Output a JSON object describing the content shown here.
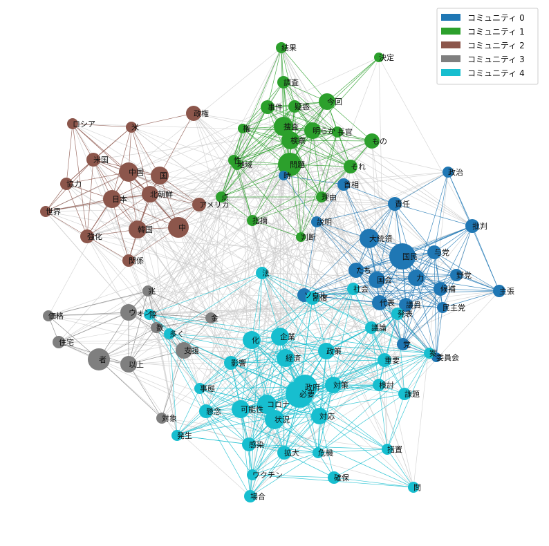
{
  "legend": [
    {
      "name": "コミュニティ 0",
      "color": "#1f77b4"
    },
    {
      "name": "コミュニティ 1",
      "color": "#2ca02c"
    },
    {
      "name": "コミュニティ 2",
      "color": "#8c564b"
    },
    {
      "name": "コミュニティ 3",
      "color": "#7f7f7f"
    },
    {
      "name": "コミュニティ 4",
      "color": "#17becf"
    }
  ],
  "background_edge_color": "#c8c8c8",
  "nodes": [
    {
      "id": "結果",
      "c": 1,
      "s": 8
    },
    {
      "id": "決定",
      "c": 1,
      "s": 7
    },
    {
      "id": "調査",
      "c": 1,
      "s": 9
    },
    {
      "id": "事件",
      "c": 1,
      "s": 10
    },
    {
      "id": "疑惑",
      "c": 1,
      "s": 9
    },
    {
      "id": "今回",
      "c": 1,
      "s": 12
    },
    {
      "id": "権",
      "c": 1,
      "s": 7
    },
    {
      "id": "捜査",
      "c": 1,
      "s": 14
    },
    {
      "id": "明らか",
      "c": 1,
      "s": 12
    },
    {
      "id": "長官",
      "c": 1,
      "s": 8
    },
    {
      "id": "検察",
      "c": 1,
      "s": 13
    },
    {
      "id": "もの",
      "c": 1,
      "s": 11
    },
    {
      "id": "性",
      "c": 1,
      "s": 8
    },
    {
      "id": "地域",
      "c": 1,
      "s": 8
    },
    {
      "id": "問題",
      "c": 1,
      "s": 17
    },
    {
      "id": "それ",
      "c": 1,
      "s": 10
    },
    {
      "id": "点",
      "c": 1,
      "s": 8
    },
    {
      "id": "理由",
      "c": 1,
      "s": 8
    },
    {
      "id": "指摘",
      "c": 1,
      "s": 8
    },
    {
      "id": "判断",
      "c": 1,
      "s": 7
    },
    {
      "id": "政権",
      "c": 2,
      "s": 11
    },
    {
      "id": "ロシア",
      "c": 2,
      "s": 8
    },
    {
      "id": "米",
      "c": 2,
      "s": 8
    },
    {
      "id": "米国",
      "c": 2,
      "s": 10
    },
    {
      "id": "中国",
      "c": 2,
      "s": 14
    },
    {
      "id": "国",
      "c": 2,
      "s": 13
    },
    {
      "id": "協力",
      "c": 2,
      "s": 9
    },
    {
      "id": "日本",
      "c": 2,
      "s": 13
    },
    {
      "id": "北朝鮮",
      "c": 2,
      "s": 12
    },
    {
      "id": "世界",
      "c": 2,
      "s": 8
    },
    {
      "id": "アメリカ",
      "c": 2,
      "s": 10
    },
    {
      "id": "強化",
      "c": 2,
      "s": 10
    },
    {
      "id": "韓国",
      "c": 2,
      "s": 13
    },
    {
      "id": "中",
      "c": 2,
      "s": 15
    },
    {
      "id": "関係",
      "c": 2,
      "s": 9
    },
    {
      "id": "政治",
      "c": 0,
      "s": 8
    },
    {
      "id": "時",
      "c": 0,
      "s": 7
    },
    {
      "id": "首相",
      "c": 0,
      "s": 9
    },
    {
      "id": "責任",
      "c": 0,
      "s": 10
    },
    {
      "id": "説明",
      "c": 0,
      "s": 8
    },
    {
      "id": "批判",
      "c": 0,
      "s": 10
    },
    {
      "id": "大統領",
      "c": 0,
      "s": 14
    },
    {
      "id": "国民",
      "c": 0,
      "s": 19
    },
    {
      "id": "与党",
      "c": 0,
      "s": 10
    },
    {
      "id": "たち",
      "c": 0,
      "s": 11
    },
    {
      "id": "力",
      "c": 0,
      "s": 12
    },
    {
      "id": "国会",
      "c": 0,
      "s": 12
    },
    {
      "id": "野党",
      "c": 0,
      "s": 9
    },
    {
      "id": "候補",
      "c": 0,
      "s": 10
    },
    {
      "id": "主張",
      "c": 0,
      "s": 9
    },
    {
      "id": "ソウル",
      "c": 0,
      "s": 10
    },
    {
      "id": "代表",
      "c": 0,
      "s": 11
    },
    {
      "id": "議員",
      "c": 0,
      "s": 10
    },
    {
      "id": "民主党",
      "c": 0,
      "s": 8
    },
    {
      "id": "党",
      "c": 0,
      "s": 9
    },
    {
      "id": "委員会",
      "c": 0,
      "s": 7
    },
    {
      "id": "兆",
      "c": 3,
      "s": 8
    },
    {
      "id": "価格",
      "c": 3,
      "s": 8
    },
    {
      "id": "ウォン",
      "c": 3,
      "s": 12
    },
    {
      "id": "金",
      "c": 3,
      "s": 8
    },
    {
      "id": "住宅",
      "c": 3,
      "s": 9
    },
    {
      "id": "数",
      "c": 3,
      "s": 8
    },
    {
      "id": "者",
      "c": 3,
      "s": 16
    },
    {
      "id": "支援",
      "c": 3,
      "s": 12
    },
    {
      "id": "以上",
      "c": 3,
      "s": 12
    },
    {
      "id": "対象",
      "c": 3,
      "s": 8
    },
    {
      "id": "法",
      "c": 4,
      "s": 9
    },
    {
      "id": "際",
      "c": 4,
      "s": 8
    },
    {
      "id": "多く",
      "c": 4,
      "s": 8
    },
    {
      "id": "制度",
      "c": 4,
      "s": 10
    },
    {
      "id": "社会",
      "c": 4,
      "s": 9
    },
    {
      "id": "議論",
      "c": 4,
      "s": 9
    },
    {
      "id": "発表",
      "c": 4,
      "s": 9
    },
    {
      "id": "案",
      "c": 4,
      "s": 8
    },
    {
      "id": "化",
      "c": 4,
      "s": 13
    },
    {
      "id": "企業",
      "c": 4,
      "s": 13
    },
    {
      "id": "政策",
      "c": 4,
      "s": 12
    },
    {
      "id": "重要",
      "c": 4,
      "s": 10
    },
    {
      "id": "影響",
      "c": 4,
      "s": 10
    },
    {
      "id": "経済",
      "c": 4,
      "s": 13
    },
    {
      "id": "政府",
      "c": 4,
      "s": 18
    },
    {
      "id": "必要",
      "c": 4,
      "s": 20
    },
    {
      "id": "対策",
      "c": 4,
      "s": 12
    },
    {
      "id": "検討",
      "c": 4,
      "s": 9
    },
    {
      "id": "事態",
      "c": 4,
      "s": 8
    },
    {
      "id": "懸念",
      "c": 4,
      "s": 10
    },
    {
      "id": "可能性",
      "c": 4,
      "s": 13
    },
    {
      "id": "コロナ",
      "c": 4,
      "s": 14
    },
    {
      "id": "課題",
      "c": 4,
      "s": 9
    },
    {
      "id": "状況",
      "c": 4,
      "s": 14
    },
    {
      "id": "対応",
      "c": 4,
      "s": 12
    },
    {
      "id": "発生",
      "c": 4,
      "s": 8
    },
    {
      "id": "感染",
      "c": 4,
      "s": 10
    },
    {
      "id": "拡大",
      "c": 4,
      "s": 10
    },
    {
      "id": "危機",
      "c": 4,
      "s": 8
    },
    {
      "id": "措置",
      "c": 4,
      "s": 8
    },
    {
      "id": "ワクチン",
      "c": 4,
      "s": 8
    },
    {
      "id": "確保",
      "c": 4,
      "s": 9
    },
    {
      "id": "場合",
      "c": 4,
      "s": 9
    },
    {
      "id": "問",
      "c": 4,
      "s": 8
    }
  ]
}
